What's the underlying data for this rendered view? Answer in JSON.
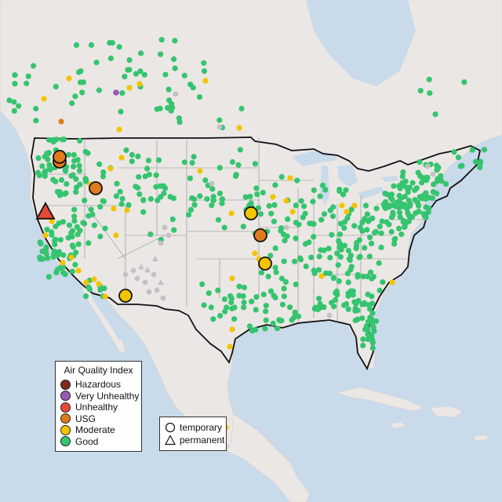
{
  "legend": {
    "title": "Air Quality Index",
    "categories": [
      {
        "label": "Hazardous",
        "color": "#7e2a1e"
      },
      {
        "label": "Very Unhealthy",
        "color": "#9a5ab3"
      },
      {
        "label": "Unhealthy",
        "color": "#e8483a"
      },
      {
        "label": "USG",
        "color": "#e07b1c"
      },
      {
        "label": "Moderate",
        "color": "#f3c300"
      },
      {
        "label": "Good",
        "color": "#35c46f"
      }
    ]
  },
  "monitor_types": [
    {
      "label": "temporary",
      "shape": "circle"
    },
    {
      "label": "permanent",
      "shape": "triangle"
    }
  ],
  "colors": {
    "water": "#c9daea",
    "land": "#ebe7e4",
    "good": "#35c46f",
    "moderate": "#f3c300",
    "usg": "#e07b1c",
    "unhealthy": "#e8483a",
    "very_unhealthy": "#9a5ab3",
    "no_data": "#c2c2c2"
  },
  "highlighted_monitors": [
    {
      "category": "Unhealthy",
      "type": "permanent",
      "location": "Northern California"
    },
    {
      "category": "USG",
      "type": "temporary",
      "location": "Oregon"
    },
    {
      "category": "USG",
      "type": "temporary",
      "location": "Oregon"
    },
    {
      "category": "USG",
      "type": "temporary",
      "location": "Idaho"
    },
    {
      "category": "USG",
      "type": "temporary",
      "location": "Missouri"
    },
    {
      "category": "Moderate",
      "type": "temporary",
      "location": "Iowa"
    },
    {
      "category": "Moderate",
      "type": "temporary",
      "location": "Missouri"
    },
    {
      "category": "Moderate",
      "type": "temporary",
      "location": "Arizona"
    }
  ]
}
